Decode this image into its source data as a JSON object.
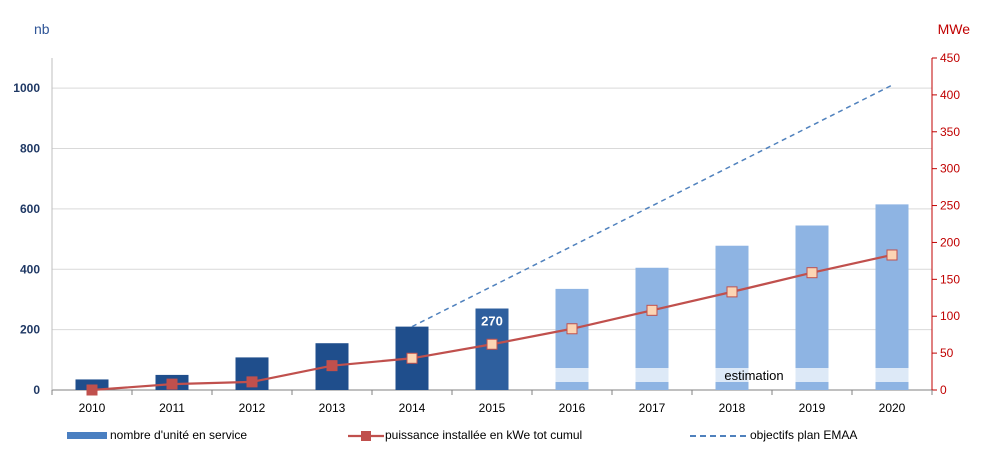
{
  "chart_data": {
    "type": "bar",
    "categories": [
      "2010",
      "2011",
      "2012",
      "2013",
      "2014",
      "2015",
      "2016",
      "2017",
      "2018",
      "2019",
      "2020"
    ],
    "y_left_unit": "nb",
    "y_right_unit": "MWe",
    "ylim_left": [
      0,
      1100
    ],
    "yticks_left": [
      "0",
      "200",
      "400",
      "600",
      "800",
      "1000"
    ],
    "ylim_right": [
      0,
      450
    ],
    "yticks_right": [
      "0",
      "50",
      "100",
      "150",
      "200",
      "250",
      "300",
      "350",
      "400",
      "450"
    ],
    "grid": true,
    "legend_position": "bottom",
    "series": [
      {
        "name": "nombre d'unité en service",
        "type": "bar",
        "axis": "left",
        "values": [
          35,
          50,
          108,
          155,
          210,
          270,
          335,
          405,
          478,
          545,
          615
        ],
        "colors": [
          "#1f4e8c",
          "#1f4e8c",
          "#1f4e8c",
          "#1f4e8c",
          "#1f4e8c",
          "#2e5f9e",
          "#8eb4e3",
          "#8eb4e3",
          "#8eb4e3",
          "#8eb4e3",
          "#8eb4e3"
        ],
        "legend_color": "#4a7fc1"
      },
      {
        "name": "puissance installée en kWe tot cumul",
        "type": "line",
        "axis": "right",
        "values": [
          0,
          8,
          11,
          33,
          43,
          62,
          83,
          108,
          133,
          159,
          183
        ],
        "color": "#c0504d",
        "marker_fill": "#fcd5b4"
      },
      {
        "name": "objectifs plan EMAA",
        "type": "line",
        "style": "dashed",
        "axis": "left",
        "x": [
          "2014",
          "2020"
        ],
        "values": [
          210,
          1010
        ],
        "color": "#4f81bd"
      }
    ],
    "annotations": [
      {
        "text": "270",
        "category": "2015"
      },
      {
        "text": "estimation",
        "from": "2016",
        "to": "2020"
      }
    ]
  }
}
